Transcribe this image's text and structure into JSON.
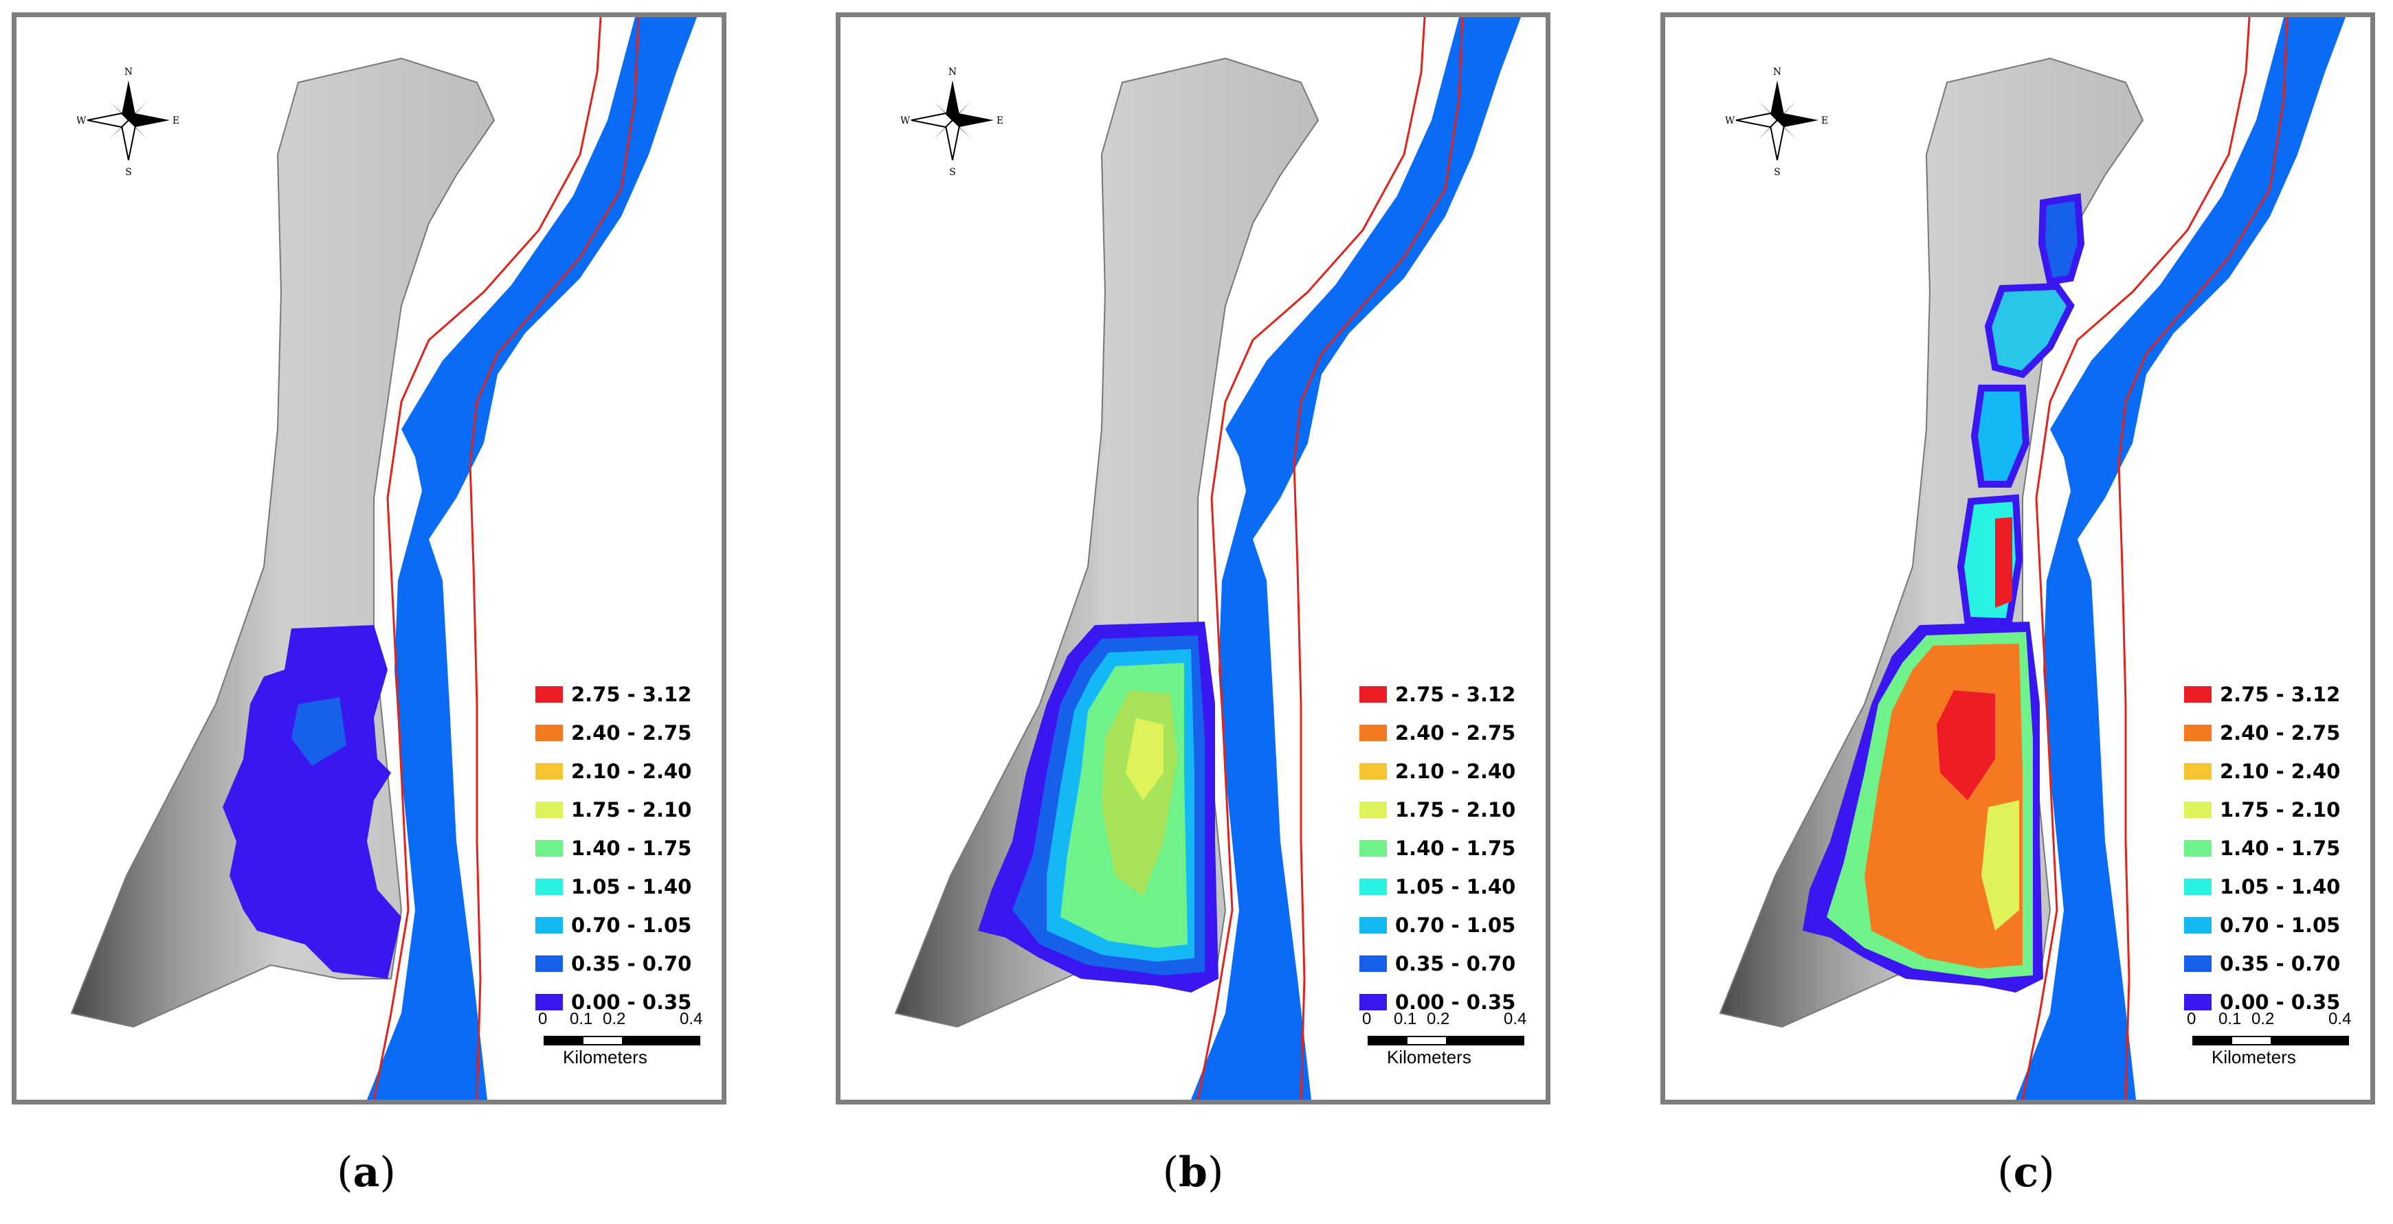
{
  "colors": {
    "river": "#0a6cf5",
    "bank_line": "#e0231b",
    "frame": "#7f7f7f",
    "terrain": "#c8c8c8"
  },
  "legend": {
    "classes": [
      {
        "label": "2.75 - 3.12",
        "color": "#ee1c24"
      },
      {
        "label": "2.40 - 2.75",
        "color": "#f47920"
      },
      {
        "label": "2.10 - 2.40",
        "color": "#f9c431"
      },
      {
        "label": "1.75 - 2.10",
        "color": "#dff25a"
      },
      {
        "label": "1.40 - 1.75",
        "color": "#6ff28a"
      },
      {
        "label": "1.05 - 1.40",
        "color": "#29f2e3"
      },
      {
        "label": "0.70 - 1.05",
        "color": "#14b8f5"
      },
      {
        "label": "0.35 - 0.70",
        "color": "#1760ea"
      },
      {
        "label": "0.00 - 0.35",
        "color": "#3a17f0"
      }
    ]
  },
  "scale": {
    "ticks": [
      "0",
      "0.1",
      "0.2",
      "0.4"
    ],
    "unit": "Kilometers"
  },
  "compass": {
    "n": "N",
    "s": "S",
    "e": "E",
    "w": "W"
  },
  "panels": [
    {
      "id": "a",
      "caption_open": "(",
      "caption_letter": "a",
      "caption_close": ")"
    },
    {
      "id": "b",
      "caption_open": "(",
      "caption_letter": "b",
      "caption_close": ")"
    },
    {
      "id": "c",
      "caption_open": "(",
      "caption_letter": "c",
      "caption_close": ")"
    }
  ]
}
